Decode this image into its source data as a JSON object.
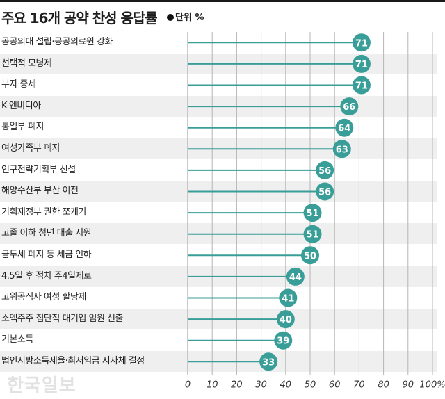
{
  "chart_data": {
    "type": "dot",
    "title": "주요 16개 공약 찬성 응답률",
    "unit_label": "●단위 %",
    "unit_text": "단위 %",
    "categories": [
      "공공의대 설립·공공의료원 강화",
      "선택적 모병제",
      "부자 증세",
      "K-엔비디아",
      "통일부 폐지",
      "여성가족부 폐지",
      "인구전략기획부 신설",
      "해양수산부 부산 이전",
      "기획재정부 권한 쪼개기",
      "고졸 이하 청년 대출 지원",
      "금투세 폐지 등 세금 인하",
      "4.5일 후 점차 주4일제로",
      "고위공직자 여성 할당제",
      "소액주주 집단적 대기업 임원 선출",
      "기본소득",
      "법인지방소득세율·최저임금 지자체 결정"
    ],
    "values": [
      71,
      71,
      71,
      66,
      64,
      63,
      56,
      56,
      51,
      51,
      50,
      44,
      41,
      40,
      39,
      33
    ],
    "xlim": [
      0,
      100
    ],
    "x_ticks": [
      "0",
      "10",
      "20",
      "30",
      "40",
      "50",
      "60",
      "70",
      "80",
      "90",
      "100%"
    ],
    "xlabel": "",
    "ylabel": "",
    "grid": true,
    "colors": {
      "dot": "#3a9e98",
      "line": "#3a9e98",
      "stripe": "#efefef",
      "grid": "#b5b5b5"
    }
  },
  "watermark": "한국일보"
}
